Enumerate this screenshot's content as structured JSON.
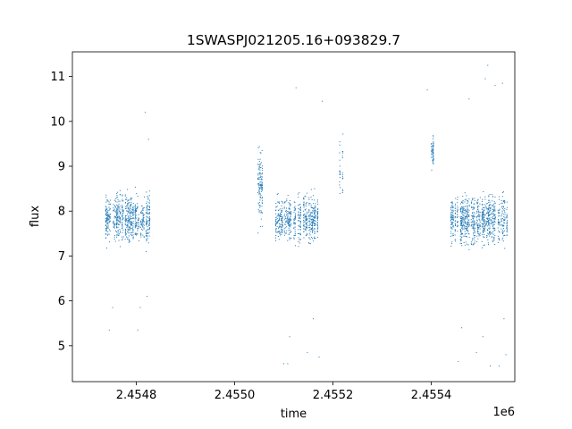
{
  "chart_data": {
    "type": "scatter",
    "title": "1SWASPJ021205.16+093829.7",
    "xlabel": "time",
    "ylabel": "flux",
    "x_offset_label": "1e6",
    "x_scale": 1000000,
    "xlim": [
      2454670,
      2455570
    ],
    "ylim": [
      4.2,
      11.55
    ],
    "x_ticks": [
      2454800,
      2455000,
      2455200,
      2455400
    ],
    "x_tick_labels": [
      "2.4548",
      "2.4550",
      "2.4552",
      "2.4554"
    ],
    "y_ticks": [
      5,
      6,
      7,
      8,
      9,
      10,
      11
    ],
    "y_tick_labels": [
      "5",
      "6",
      "7",
      "8",
      "9",
      "10",
      "11"
    ],
    "grid": false,
    "marker_color": "#1f77b4",
    "segments": [
      {
        "x_start": 2454737,
        "x_end": 2454828,
        "y_low": 6.85,
        "y_high": 8.8,
        "mean": 7.85
      },
      {
        "x_start": 2455047,
        "x_end": 2455057,
        "y_low": 6.9,
        "y_high": 10.2,
        "mean": 8.6
      },
      {
        "x_start": 2455083,
        "x_end": 2455170,
        "y_low": 6.9,
        "y_high": 8.8,
        "mean": 7.8
      },
      {
        "x_start": 2455213,
        "x_end": 2455223,
        "y_low": 7.6,
        "y_high": 10.5,
        "mean": 8.9
      },
      {
        "x_start": 2455400,
        "x_end": 2455405,
        "y_low": 8.8,
        "y_high": 10.0,
        "mean": 9.3
      },
      {
        "x_start": 2455437,
        "x_end": 2455555,
        "y_low": 6.9,
        "y_high": 8.9,
        "mean": 7.8
      }
    ],
    "outliers": [
      [
        2454745,
        5.35
      ],
      [
        2454752,
        5.85
      ],
      [
        2454803,
        5.35
      ],
      [
        2454808,
        5.85
      ],
      [
        2454818,
        10.2
      ],
      [
        2454822,
        6.1
      ],
      [
        2454825,
        9.6
      ],
      [
        2455100,
        4.6
      ],
      [
        2455108,
        4.6
      ],
      [
        2455112,
        5.2
      ],
      [
        2455125,
        10.75
      ],
      [
        2455148,
        4.85
      ],
      [
        2455160,
        5.6
      ],
      [
        2455172,
        4.75
      ],
      [
        2455178,
        10.45
      ],
      [
        2455455,
        4.65
      ],
      [
        2455462,
        5.4
      ],
      [
        2455477,
        10.5
      ],
      [
        2455492,
        4.85
      ],
      [
        2455505,
        5.2
      ],
      [
        2455510,
        10.95
      ],
      [
        2455515,
        11.25
      ],
      [
        2455520,
        4.55
      ],
      [
        2455530,
        10.8
      ],
      [
        2455538,
        4.55
      ],
      [
        2455545,
        10.85
      ],
      [
        2455548,
        5.6
      ],
      [
        2455552,
        4.8
      ],
      [
        2455392,
        10.7
      ]
    ]
  }
}
